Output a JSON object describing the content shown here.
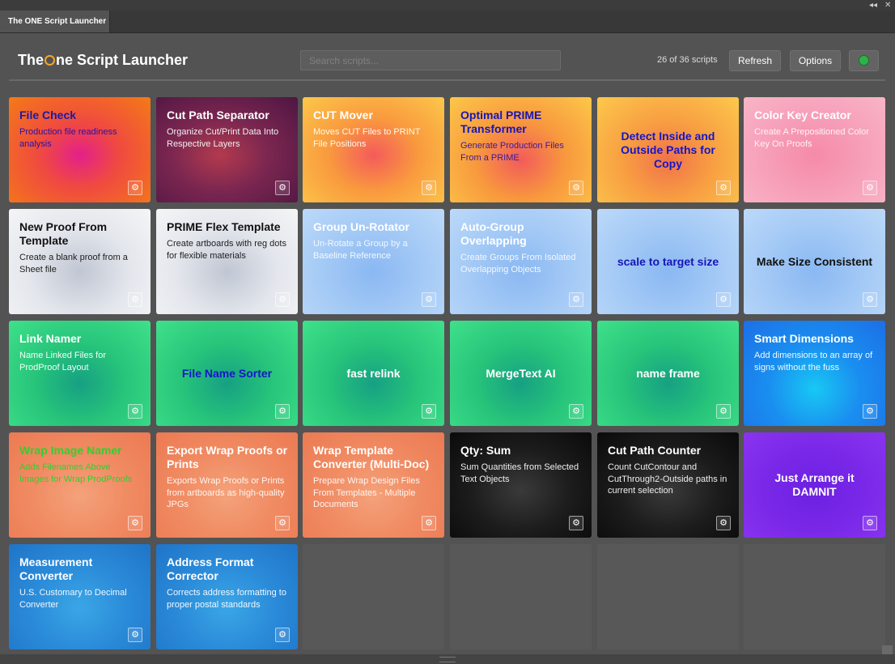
{
  "window": {
    "tab_title": "The ONE Script Launcher",
    "controls": {
      "collapse": "◂◂",
      "close": "✕"
    }
  },
  "header": {
    "title_before": "The",
    "title_o": "O",
    "title_after": "ne Script Launcher",
    "search_placeholder": "Search scripts...",
    "count": "26 of 36 scripts",
    "refresh_label": "Refresh",
    "options_label": "Options",
    "status_color": "#2fb24a"
  },
  "tiles": [
    {
      "name": "File Check",
      "desc": "Production file readiness analysis",
      "name_color": "#1a1aa8",
      "desc_color": "#2a10a8",
      "bg": "radial-gradient(ellipse at 50% 55%, #e3208a 0%, #f04a40 40%, #f47b16 100%)"
    },
    {
      "name": "Cut Path Separator",
      "desc": "Organize Cut/Print Data Into Respective Layers",
      "name_color": "#ffffff",
      "desc_color": "#f0f0f0",
      "bg": "radial-gradient(ellipse at 45% 55%, #b33a4e 0%, #7a2650 45%, #4e1642 100%)"
    },
    {
      "name": "CUT Mover",
      "desc": "Moves CUT Files to PRINT File Positions",
      "name_color": "#ffffff",
      "desc_color": "#fff7e8",
      "bg": "radial-gradient(ellipse at 50% 55%, #f45b5b 0%, #f99a3e 45%, #fcc84a 100%)"
    },
    {
      "name": "Optimal PRIME Transformer",
      "desc": "Generate Production Files From a PRIME",
      "name_color": "#1616b8",
      "desc_color": "#3a1a9a",
      "bg": "radial-gradient(ellipse at 50% 60%, #f25b5b 0%, #f8993d 45%, #fcc84a 100%)"
    },
    {
      "name": "Detect Inside and Outside Paths for Copy",
      "desc": "",
      "name_color": "#1616c8",
      "desc_color": "#1616c8",
      "center": true,
      "bg": "radial-gradient(ellipse at 50% 60%, #f0724a 0%, #f89f42 45%, #fcc94c 100%)"
    },
    {
      "name": "Color Key Creator",
      "desc": "Create A Prepositioned Color Key On Proofs",
      "name_color": "#ffffff",
      "desc_color": "#fff2f6",
      "bg": "radial-gradient(ellipse at 50% 55%, #f58aa8 0%, #f7a4bc 60%, #f9b5c6 100%)"
    },
    {
      "name": "New Proof From Template",
      "desc": "Create a blank proof from a Sheet file",
      "name_color": "#111111",
      "desc_color": "#222222",
      "bg": "radial-gradient(ellipse at 50% 60%, #c0c6d3 0%, #e3e6ec 50%, #f4f5f7 100%)"
    },
    {
      "name": "PRIME Flex Template",
      "desc": "Create artboards with reg dots for flexible materials",
      "name_color": "#111111",
      "desc_color": "#222222",
      "bg": "radial-gradient(ellipse at 50% 60%, #c0c6d3 0%, #e3e6ec 50%, #f4f5f7 100%)"
    },
    {
      "name": "Group Un-Rotator",
      "desc": "Un-Rotate a Group by a Baseline Reference",
      "name_color": "#ffffff",
      "desc_color": "#f3f8ff",
      "bg": "radial-gradient(ellipse at 50% 60%, #8ab8f2 0%, #a6cbf6 55%, #bcd9f9 100%)"
    },
    {
      "name": "Auto-Group Overlapping",
      "desc": "Create Groups From Isolated Overlapping Objects",
      "name_color": "#ffffff",
      "desc_color": "#f3f8ff",
      "bg": "radial-gradient(ellipse at 50% 60%, #8ab8f2 0%, #a6cbf6 55%, #bcd9f9 100%)"
    },
    {
      "name": "scale to target size",
      "desc": "",
      "name_color": "#1616b8",
      "desc_color": "#1616b8",
      "center": true,
      "bg": "radial-gradient(ellipse at 50% 60%, #8ab8f2 0%, #a6cbf6 55%, #bcd9f9 100%)"
    },
    {
      "name": "Make Size Consistent",
      "desc": "",
      "name_color": "#111111",
      "desc_color": "#111111",
      "center": true,
      "bg": "radial-gradient(ellipse at 50% 60%, #8ab8f2 0%, #a6cbf6 55%, #bcd9f9 100%)"
    },
    {
      "name": "Link Namer",
      "desc": "Name Linked Files for ProdProof Layout",
      "name_color": "#ffffff",
      "desc_color": "#f0fff6",
      "bg": "radial-gradient(ellipse at 50% 60%, #16a083 0%, #27c47a 45%, #3fe18a 100%)"
    },
    {
      "name": "File Name Sorter",
      "desc": "",
      "name_color": "#1616c8",
      "desc_color": "#1616c8",
      "center": true,
      "bg": "radial-gradient(ellipse at 50% 60%, #16a083 0%, #27c47a 45%, #3fe18a 100%)"
    },
    {
      "name": "fast relink",
      "desc": "",
      "name_color": "#ffffff",
      "desc_color": "#ffffff",
      "center": true,
      "bg": "radial-gradient(ellipse at 50% 60%, #16a083 0%, #27c47a 45%, #3fe18a 100%)"
    },
    {
      "name": "MergeText AI",
      "desc": "",
      "name_color": "#ffffff",
      "desc_color": "#ffffff",
      "center": true,
      "bg": "radial-gradient(ellipse at 50% 60%, #16a083 0%, #27c47a 45%, #3fe18a 100%)"
    },
    {
      "name": "name frame",
      "desc": "",
      "name_color": "#ffffff",
      "desc_color": "#ffffff",
      "center": true,
      "bg": "radial-gradient(ellipse at 50% 60%, #16a083 0%, #27c47a 45%, #3fe18a 100%)"
    },
    {
      "name": "Smart Dimensions",
      "desc": "Add dimensions to an array of signs without the fuss",
      "name_color": "#ffffff",
      "desc_color": "#f0f8ff",
      "bg": "radial-gradient(ellipse at 50% 65%, #18c8f4 0%, #1a8ff0 45%, #1c6fe6 100%)"
    },
    {
      "name": "Wrap Image Namer",
      "desc": "Adds Filenames Above Images for Wrap ProdProofs",
      "name_color": "#2ed12e",
      "desc_color": "#2ed12e",
      "bg": "radial-gradient(ellipse at 50% 60%, #f4a27a 0%, #f08a62 50%, #ec7a52 100%)"
    },
    {
      "name": "Export Wrap Proofs or Prints",
      "desc": "Exports Wrap Proofs or Prints from artboards as high-quality JPGs",
      "name_color": "#ffffff",
      "desc_color": "#fff4ee",
      "bg": "radial-gradient(ellipse at 50% 60%, #f4a27a 0%, #f08a62 50%, #ec7a52 100%)"
    },
    {
      "name": "Wrap Template Converter (Multi-Doc)",
      "desc": "Prepare Wrap Design Files From Templates - Multiple Documents",
      "name_color": "#ffffff",
      "desc_color": "#fff4ee",
      "bg": "radial-gradient(ellipse at 50% 60%, #f4a27a 0%, #f08a62 50%, #ec7a52 100%)"
    },
    {
      "name": "Qty: Sum",
      "desc": "Sum Quantities from Selected Text Objects",
      "name_color": "#ffffff",
      "desc_color": "#eeeeee",
      "bg": "radial-gradient(ellipse at 50% 55%, #3a3a3a 0%, #1c1c1c 50%, #0a0a0a 100%)"
    },
    {
      "name": "Cut Path Counter",
      "desc": "Count CutContour and CutThrough2-Outside paths in current selection",
      "name_color": "#ffffff",
      "desc_color": "#eeeeee",
      "bg": "radial-gradient(ellipse at 50% 55%, #3a3a3a 0%, #1c1c1c 50%, #0a0a0a 100%)"
    },
    {
      "name": "Just Arrange it DAMNIT",
      "desc": "",
      "name_color": "#ffffff",
      "desc_color": "#ffffff",
      "center": true,
      "bg": "radial-gradient(ellipse at 50% 55%, #6c20e0 0%, #7a28e8 50%, #8a34f0 100%)"
    },
    {
      "name": "Measurement Converter",
      "desc": "U.S. Customary to Decimal Converter",
      "name_color": "#ffffff",
      "desc_color": "#f0f8ff",
      "bg": "radial-gradient(ellipse at 50% 60%, #3aa6e6 0%, #2a8ad8 50%, #1f74c8 100%)"
    },
    {
      "name": "Address Format Corrector",
      "desc": "Corrects address formatting to proper postal standards",
      "name_color": "#ffffff",
      "desc_color": "#f0f8ff",
      "bg": "radial-gradient(ellipse at 50% 60%, #3aa6e6 0%, #2a8ad8 50%, #1f74c8 100%)"
    }
  ],
  "gear_glyph": "⚙"
}
